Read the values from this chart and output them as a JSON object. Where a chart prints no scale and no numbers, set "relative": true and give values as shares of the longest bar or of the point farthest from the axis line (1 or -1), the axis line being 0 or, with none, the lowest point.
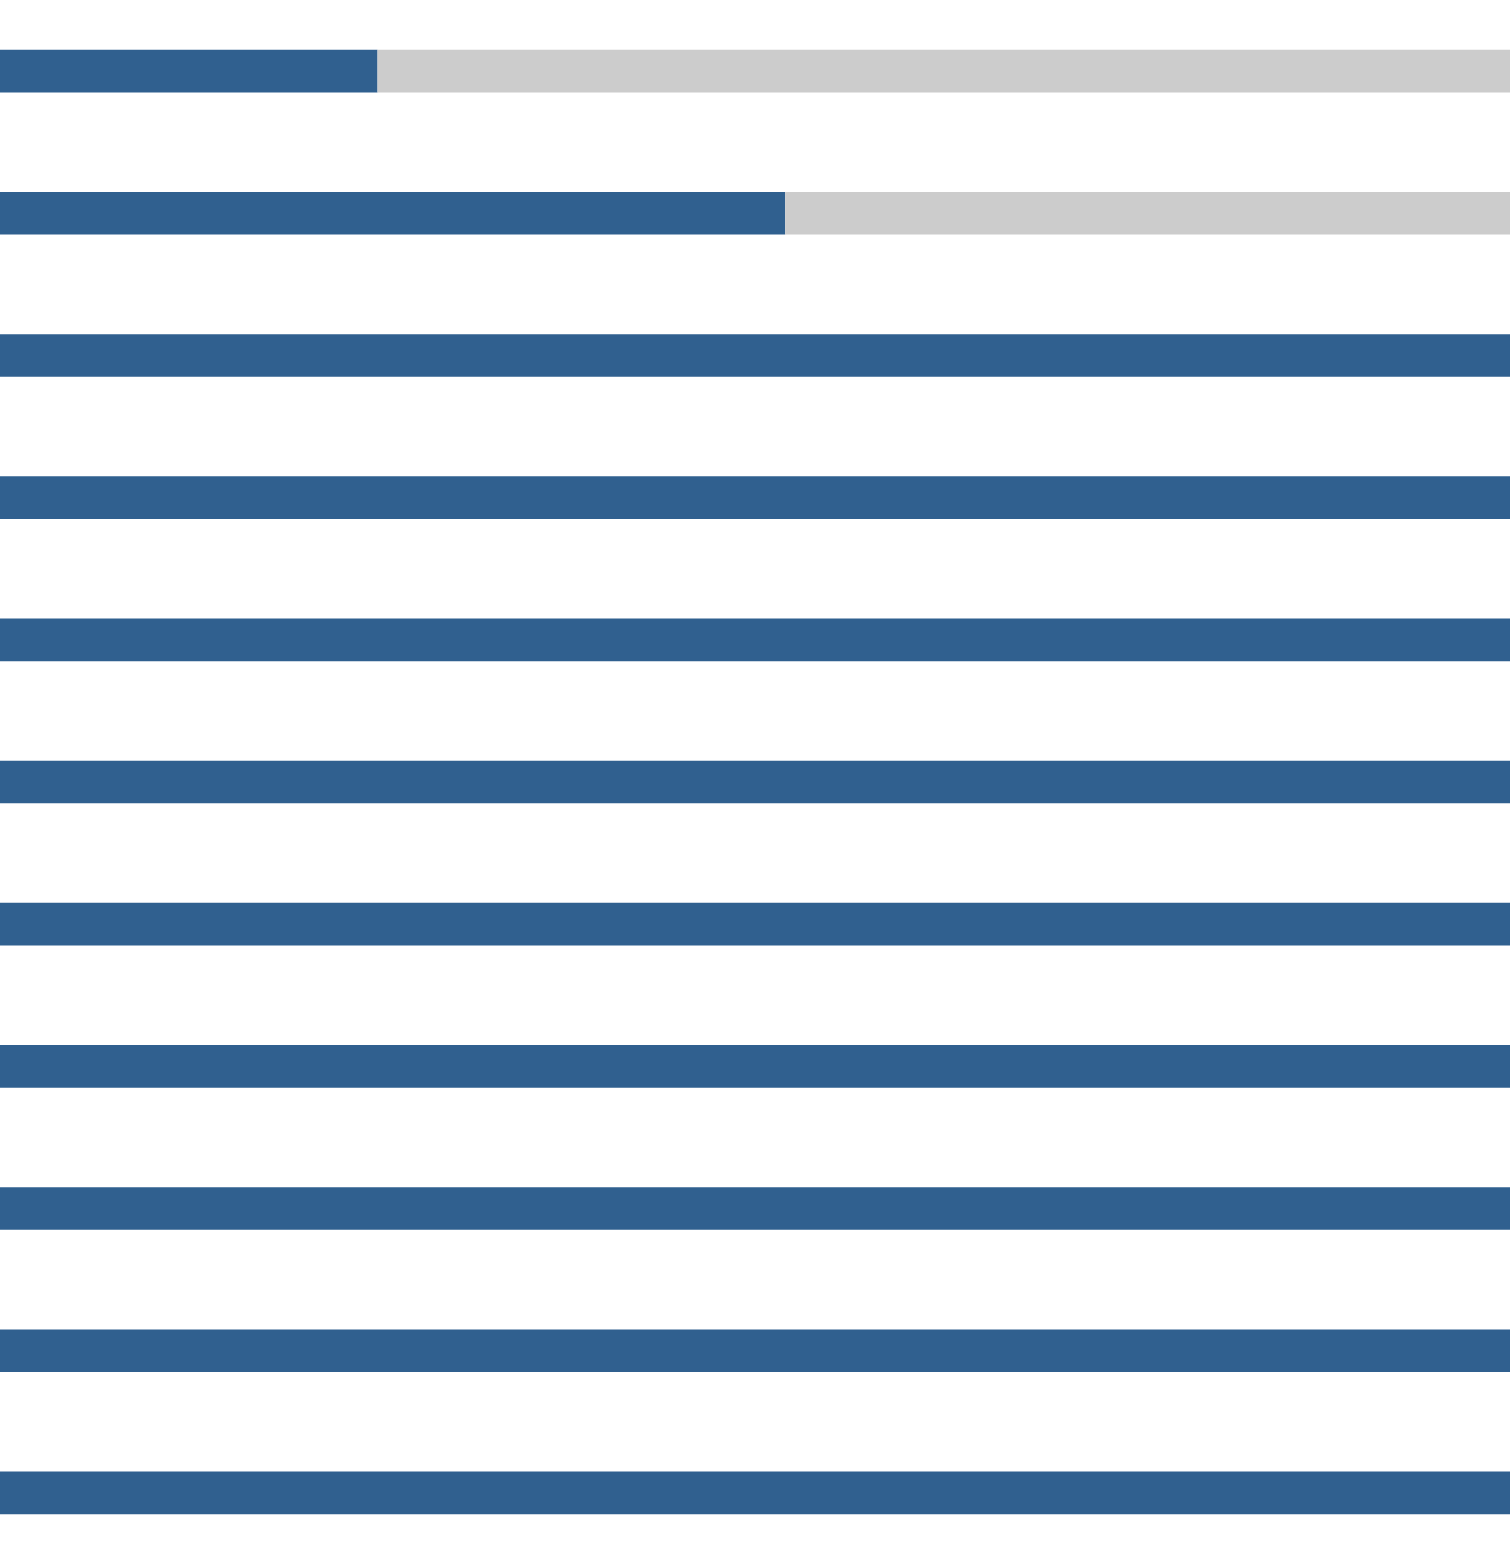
{
  "chart_data": {
    "type": "bar",
    "orientation": "horizontal",
    "stacked": true,
    "relative": true,
    "categories": [
      null,
      null,
      null,
      null,
      null,
      null,
      null,
      null,
      null,
      null,
      null
    ],
    "series": [
      {
        "color": "#30608f",
        "values": [
          0.25,
          0.52,
          1,
          1,
          1,
          1,
          1,
          1,
          1,
          1,
          1
        ]
      },
      {
        "color": "#cccccc",
        "values": [
          0.75,
          0.48,
          0,
          0,
          0,
          0,
          0,
          0,
          0,
          0,
          0
        ]
      }
    ]
  }
}
